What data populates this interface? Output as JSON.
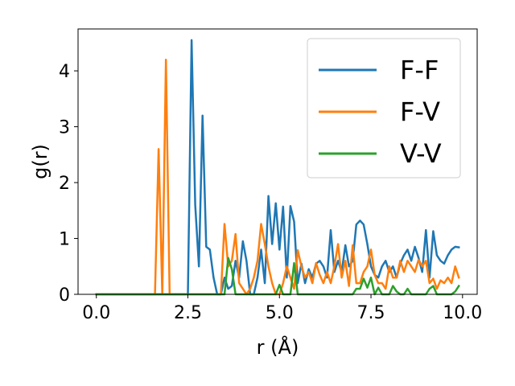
{
  "chart_data": {
    "type": "line",
    "xlabel": "r (Å)",
    "ylabel": "g(r)",
    "xlim": [
      -0.5,
      10.4
    ],
    "ylim": [
      0,
      4.75
    ],
    "xticks": [
      0.0,
      2.5,
      5.0,
      7.5,
      10.0
    ],
    "xtick_labels": [
      "0.0",
      "2.5",
      "5.0",
      "7.5",
      "10.0"
    ],
    "yticks": [
      0,
      1,
      2,
      3,
      4
    ],
    "ytick_labels": [
      "0",
      "1",
      "2",
      "3",
      "4"
    ],
    "grid": false,
    "legend_position": "top-right",
    "x": [
      0.0,
      0.1,
      0.2,
      0.3,
      0.4,
      0.5,
      0.6,
      0.7,
      0.8,
      0.9,
      1.0,
      1.1,
      1.2,
      1.3,
      1.4,
      1.5,
      1.6,
      1.7,
      1.8,
      1.9,
      2.0,
      2.1,
      2.2,
      2.3,
      2.4,
      2.5,
      2.6,
      2.7,
      2.8,
      2.9,
      3.0,
      3.1,
      3.2,
      3.3,
      3.4,
      3.5,
      3.6,
      3.7,
      3.8,
      3.9,
      4.0,
      4.1,
      4.2,
      4.3,
      4.4,
      4.5,
      4.6,
      4.7,
      4.8,
      4.9,
      5.0,
      5.1,
      5.2,
      5.3,
      5.4,
      5.5,
      5.6,
      5.7,
      5.8,
      5.9,
      6.0,
      6.1,
      6.2,
      6.3,
      6.4,
      6.5,
      6.6,
      6.7,
      6.8,
      6.9,
      7.0,
      7.1,
      7.2,
      7.3,
      7.4,
      7.5,
      7.6,
      7.7,
      7.8,
      7.9,
      8.0,
      8.1,
      8.2,
      8.3,
      8.4,
      8.5,
      8.6,
      8.7,
      8.8,
      8.9,
      9.0,
      9.1,
      9.2,
      9.3,
      9.4,
      9.5,
      9.6,
      9.7,
      9.8,
      9.9
    ],
    "series": [
      {
        "name": "F-F",
        "color": "#1f77b4",
        "values": [
          0,
          0,
          0,
          0,
          0,
          0,
          0,
          0,
          0,
          0,
          0,
          0,
          0,
          0,
          0,
          0,
          0,
          0,
          0,
          0,
          0,
          0,
          0,
          0,
          0,
          0,
          4.55,
          1.6,
          0.5,
          3.2,
          0.85,
          0.8,
          0.3,
          0,
          0,
          0.3,
          0.1,
          0.15,
          0.6,
          0.3,
          0.95,
          0.6,
          0,
          0,
          0.3,
          0.8,
          0.2,
          1.76,
          0.9,
          1.63,
          0.8,
          1.57,
          0.3,
          1.58,
          1.3,
          0.2,
          0.55,
          0.2,
          0.45,
          0.3,
          0.55,
          0.6,
          0.5,
          0.3,
          1.15,
          0.4,
          0.6,
          0.4,
          0.88,
          0.5,
          0.6,
          1.25,
          1.32,
          1.25,
          0.9,
          0.5,
          0.35,
          0.3,
          0.5,
          0.6,
          0.4,
          0.5,
          0.3,
          0.55,
          0.7,
          0.8,
          0.6,
          0.85,
          0.65,
          0.4,
          1.15,
          0.3,
          1.13,
          0.7,
          0.6,
          0.55,
          0.7,
          0.8,
          0.85,
          0.84
        ]
      },
      {
        "name": "F-V",
        "color": "#ff7f0e",
        "values": [
          0,
          0,
          0,
          0,
          0,
          0,
          0,
          0,
          0,
          0,
          0,
          0,
          0,
          0,
          0,
          0,
          0,
          2.6,
          0,
          4.2,
          0,
          0,
          0,
          0,
          0,
          0,
          0,
          0,
          0,
          0,
          0,
          0,
          0,
          0,
          0,
          1.26,
          0.5,
          0.6,
          1.08,
          0.2,
          0.1,
          0,
          0.1,
          0.3,
          0.6,
          1.26,
          0.9,
          0.5,
          0.2,
          0,
          0,
          0.2,
          0.5,
          0.3,
          0.1,
          0.79,
          0.5,
          0.3,
          0.4,
          0.2,
          0.56,
          0.35,
          0.2,
          0.4,
          0.2,
          0.5,
          0.9,
          0.3,
          0.6,
          0.15,
          0.88,
          0.2,
          0.2,
          0.4,
          0.5,
          0.8,
          0.35,
          0.2,
          0.2,
          0.1,
          0.5,
          0.3,
          0.3,
          0.6,
          0.4,
          0.6,
          0.5,
          0.4,
          0.62,
          0.5,
          0.6,
          0.2,
          0.28,
          0.1,
          0.25,
          0.2,
          0.3,
          0.2,
          0.5,
          0.3
        ]
      },
      {
        "name": "V-V",
        "color": "#2ca02c",
        "values": [
          0,
          0,
          0,
          0,
          0,
          0,
          0,
          0,
          0,
          0,
          0,
          0,
          0,
          0,
          0,
          0,
          0,
          0,
          0,
          0,
          0,
          0,
          0,
          0,
          0,
          0,
          0,
          0,
          0,
          0,
          0,
          0,
          0,
          0,
          0,
          0,
          0.65,
          0.45,
          0,
          0,
          0,
          0,
          0,
          0,
          0,
          0,
          0,
          0,
          0,
          0,
          0.17,
          0,
          0,
          0,
          0.56,
          0,
          0,
          0,
          0,
          0,
          0,
          0,
          0,
          0,
          0,
          0,
          0,
          0,
          0,
          0,
          0,
          0.1,
          0.1,
          0.28,
          0.12,
          0.3,
          0,
          0.12,
          0,
          0,
          0,
          0.15,
          0.05,
          0,
          0,
          0.1,
          0,
          0,
          0,
          0,
          0,
          0.1,
          0.15,
          0,
          0,
          0,
          0,
          0,
          0.05,
          0.15
        ]
      }
    ]
  }
}
